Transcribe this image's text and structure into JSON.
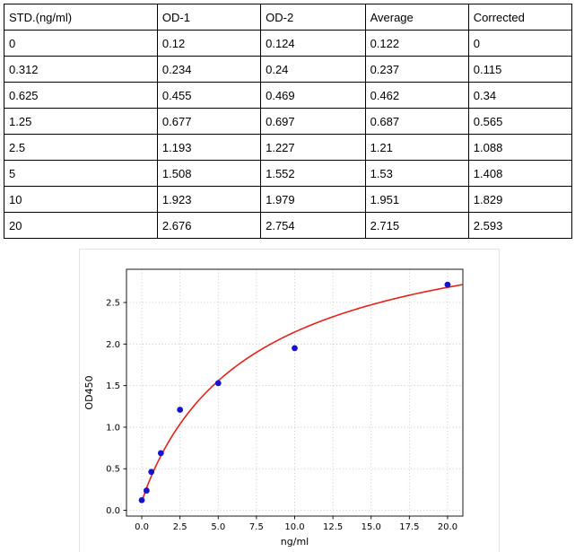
{
  "table": {
    "headers": [
      "STD.(ng/ml)",
      "OD-1",
      "OD-2",
      "Average",
      "Corrected"
    ],
    "rows": [
      [
        "0",
        "0.12",
        "0.124",
        "0.122",
        "0"
      ],
      [
        "0.312",
        "0.234",
        "0.24",
        "0.237",
        "0.115"
      ],
      [
        "0.625",
        "0.455",
        "0.469",
        "0.462",
        "0.34"
      ],
      [
        "1.25",
        "0.677",
        "0.697",
        "0.687",
        "0.565"
      ],
      [
        "2.5",
        "1.193",
        "1.227",
        "1.21",
        "1.088"
      ],
      [
        "5",
        "1.508",
        "1.552",
        "1.53",
        "1.408"
      ],
      [
        "10",
        "1.923",
        "1.979",
        "1.951",
        "1.829"
      ],
      [
        "20",
        "2.676",
        "2.754",
        "2.715",
        "2.593"
      ]
    ]
  },
  "chart_data": {
    "type": "scatter",
    "title": "",
    "xlabel": "ng/ml",
    "ylabel": "OD450",
    "x": [
      0,
      0.312,
      0.625,
      1.25,
      2.5,
      5,
      10,
      20
    ],
    "y": [
      0.122,
      0.237,
      0.462,
      0.687,
      1.21,
      1.53,
      1.951,
      2.715
    ],
    "xlim": [
      -1,
      21
    ],
    "ylim": [
      -0.07,
      2.9
    ],
    "xticks": [
      0.0,
      2.5,
      5.0,
      7.5,
      10.0,
      12.5,
      15.0,
      17.5,
      20.0
    ],
    "yticks": [
      0.0,
      0.5,
      1.0,
      1.5,
      2.0,
      2.5
    ],
    "grid": "dotted",
    "grid_color": "#bcbcbc",
    "point_color": "#1414cc",
    "curve_color": "#e3231a",
    "fit": {
      "type": "4pl",
      "a": 0.1,
      "b": 0.95,
      "c": 7.5,
      "d": 3.7
    }
  }
}
